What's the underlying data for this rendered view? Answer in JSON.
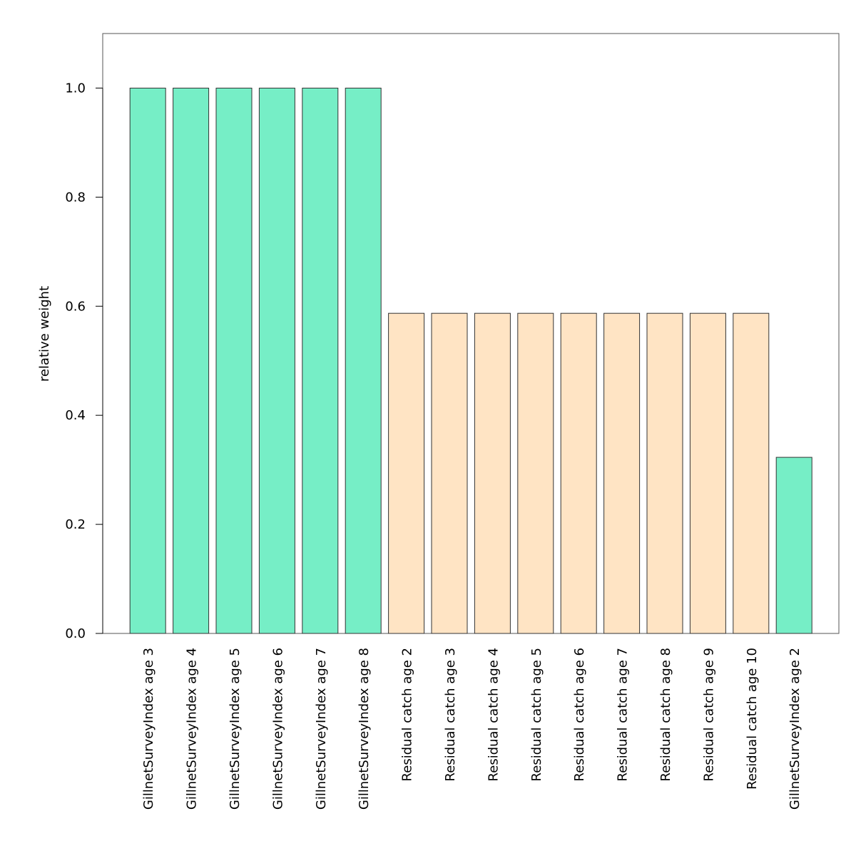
{
  "chart_data": {
    "type": "bar",
    "title": "",
    "xlabel": "",
    "ylabel": "relative weight",
    "ylim": [
      0,
      1.1
    ],
    "yticks": [
      "0.0",
      "0.2",
      "0.4",
      "0.6",
      "0.8",
      "1.0"
    ],
    "grid": false,
    "colors": {
      "survey": "#76EEC6",
      "catch": "#FFE4C4",
      "edge": "#333333"
    },
    "categories": [
      "GillnetSurveyIndex age 3",
      "GillnetSurveyIndex age 4",
      "GillnetSurveyIndex age 5",
      "GillnetSurveyIndex age 6",
      "GillnetSurveyIndex age 7",
      "GillnetSurveyIndex age 8",
      "Residual catch age 2",
      "Residual catch age 3",
      "Residual catch age 4",
      "Residual catch age 5",
      "Residual catch age 6",
      "Residual catch age 7",
      "Residual catch age 8",
      "Residual catch age 9",
      "Residual catch age 10",
      "GillnetSurveyIndex age 2"
    ],
    "values": [
      1.0,
      1.0,
      1.0,
      1.0,
      1.0,
      1.0,
      0.587,
      0.587,
      0.587,
      0.587,
      0.587,
      0.587,
      0.587,
      0.587,
      0.587,
      0.323
    ],
    "groups": [
      "survey",
      "survey",
      "survey",
      "survey",
      "survey",
      "survey",
      "catch",
      "catch",
      "catch",
      "catch",
      "catch",
      "catch",
      "catch",
      "catch",
      "catch",
      "survey"
    ]
  }
}
